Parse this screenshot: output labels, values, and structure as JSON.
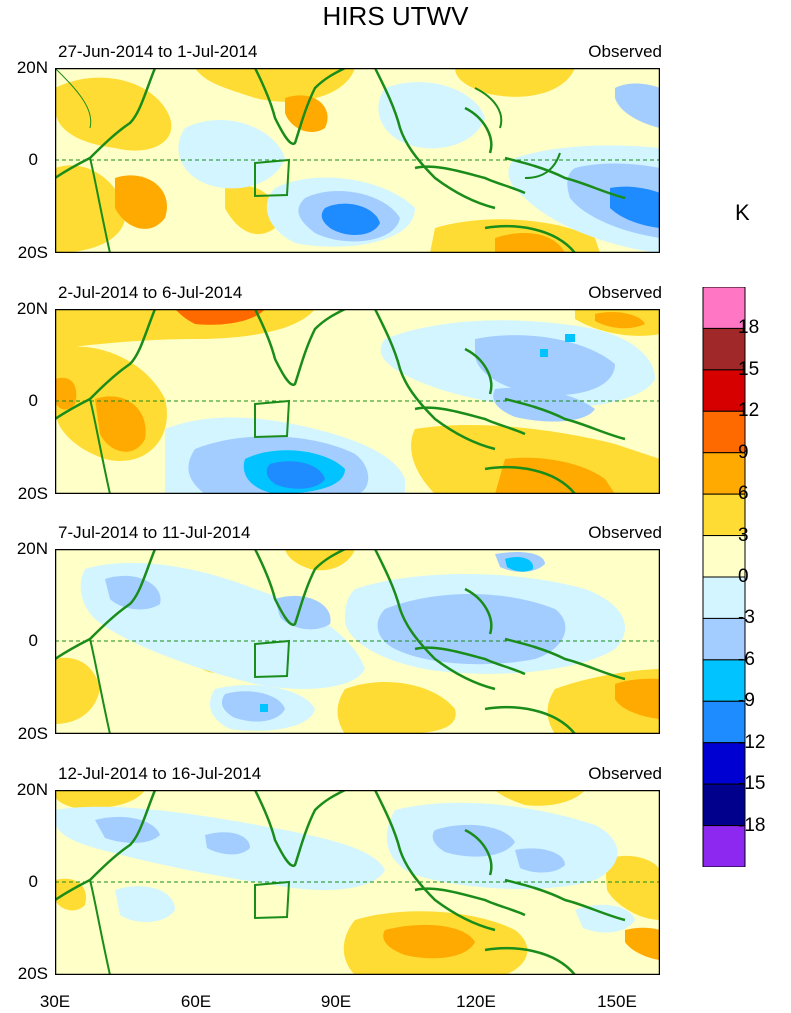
{
  "title": "HIRS UTWV",
  "unit": "K",
  "lat_labels": [
    "20N",
    "0",
    "20S"
  ],
  "lon_labels": [
    "30E",
    "60E",
    "90E",
    "120E",
    "150E"
  ],
  "panels": [
    {
      "date_range": "27-Jun-2014 to 1-Jul-2014",
      "type": "Observed"
    },
    {
      "date_range": "2-Jul-2014 to 6-Jul-2014",
      "type": "Observed"
    },
    {
      "date_range": "7-Jul-2014 to 11-Jul-2014",
      "type": "Observed"
    },
    {
      "date_range": "12-Jul-2014 to 16-Jul-2014",
      "type": "Observed"
    }
  ],
  "colorbar": {
    "labels": [
      "18",
      "15",
      "12",
      "9",
      "6",
      "3",
      "0",
      "-3",
      "-6",
      "-9",
      "-12",
      "-15",
      "-18"
    ],
    "colors": [
      "#ff77c4",
      "#a02828",
      "#d60000",
      "#ff6a00",
      "#ffaa00",
      "#ffdc33",
      "#ffffc8",
      "#d2f5ff",
      "#a4cdff",
      "#00c3ff",
      "#1e8cff",
      "#0000d2",
      "#00008c",
      "#8c28f0"
    ]
  },
  "colors": {
    "coast": "#1a8c1a",
    "warm_light": "#ffffc8",
    "warm": "#ffdc33",
    "warm2": "#ffaa00",
    "warm3": "#ff6a00",
    "cool_light": "#d2f5ff",
    "cool": "#a4cdff",
    "cool2": "#00c3ff",
    "cool3": "#1e8cff"
  }
}
